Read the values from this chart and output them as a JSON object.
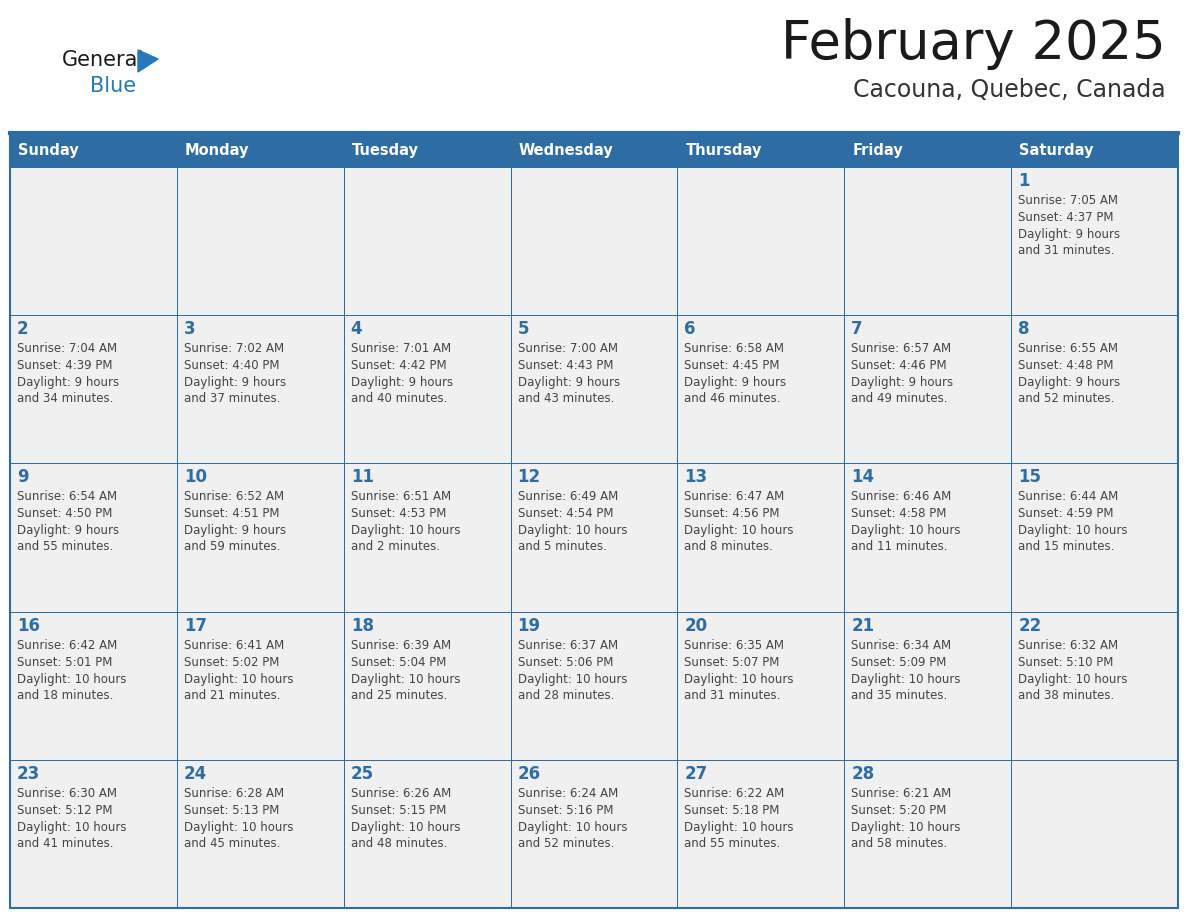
{
  "title": "February 2025",
  "subtitle": "Cacouna, Quebec, Canada",
  "days_of_week": [
    "Sunday",
    "Monday",
    "Tuesday",
    "Wednesday",
    "Thursday",
    "Friday",
    "Saturday"
  ],
  "header_bg": "#2E6DA4",
  "header_text": "#FFFFFF",
  "cell_bg": "#F0F0F0",
  "border_color": "#2E6DA4",
  "day_number_color": "#2E6DA4",
  "text_color": "#444444",
  "title_color": "#1a1a1a",
  "subtitle_color": "#333333",
  "logo_general_color": "#1a1a1a",
  "logo_blue_color": "#2479BD",
  "weeks": [
    [
      null,
      null,
      null,
      null,
      null,
      null,
      1
    ],
    [
      2,
      3,
      4,
      5,
      6,
      7,
      8
    ],
    [
      9,
      10,
      11,
      12,
      13,
      14,
      15
    ],
    [
      16,
      17,
      18,
      19,
      20,
      21,
      22
    ],
    [
      23,
      24,
      25,
      26,
      27,
      28,
      null
    ]
  ],
  "cell_data": {
    "1": {
      "sunrise": "7:05 AM",
      "sunset": "4:37 PM",
      "daylight_line1": "Daylight: 9 hours",
      "daylight_line2": "and 31 minutes."
    },
    "2": {
      "sunrise": "7:04 AM",
      "sunset": "4:39 PM",
      "daylight_line1": "Daylight: 9 hours",
      "daylight_line2": "and 34 minutes."
    },
    "3": {
      "sunrise": "7:02 AM",
      "sunset": "4:40 PM",
      "daylight_line1": "Daylight: 9 hours",
      "daylight_line2": "and 37 minutes."
    },
    "4": {
      "sunrise": "7:01 AM",
      "sunset": "4:42 PM",
      "daylight_line1": "Daylight: 9 hours",
      "daylight_line2": "and 40 minutes."
    },
    "5": {
      "sunrise": "7:00 AM",
      "sunset": "4:43 PM",
      "daylight_line1": "Daylight: 9 hours",
      "daylight_line2": "and 43 minutes."
    },
    "6": {
      "sunrise": "6:58 AM",
      "sunset": "4:45 PM",
      "daylight_line1": "Daylight: 9 hours",
      "daylight_line2": "and 46 minutes."
    },
    "7": {
      "sunrise": "6:57 AM",
      "sunset": "4:46 PM",
      "daylight_line1": "Daylight: 9 hours",
      "daylight_line2": "and 49 minutes."
    },
    "8": {
      "sunrise": "6:55 AM",
      "sunset": "4:48 PM",
      "daylight_line1": "Daylight: 9 hours",
      "daylight_line2": "and 52 minutes."
    },
    "9": {
      "sunrise": "6:54 AM",
      "sunset": "4:50 PM",
      "daylight_line1": "Daylight: 9 hours",
      "daylight_line2": "and 55 minutes."
    },
    "10": {
      "sunrise": "6:52 AM",
      "sunset": "4:51 PM",
      "daylight_line1": "Daylight: 9 hours",
      "daylight_line2": "and 59 minutes."
    },
    "11": {
      "sunrise": "6:51 AM",
      "sunset": "4:53 PM",
      "daylight_line1": "Daylight: 10 hours",
      "daylight_line2": "and 2 minutes."
    },
    "12": {
      "sunrise": "6:49 AM",
      "sunset": "4:54 PM",
      "daylight_line1": "Daylight: 10 hours",
      "daylight_line2": "and 5 minutes."
    },
    "13": {
      "sunrise": "6:47 AM",
      "sunset": "4:56 PM",
      "daylight_line1": "Daylight: 10 hours",
      "daylight_line2": "and 8 minutes."
    },
    "14": {
      "sunrise": "6:46 AM",
      "sunset": "4:58 PM",
      "daylight_line1": "Daylight: 10 hours",
      "daylight_line2": "and 11 minutes."
    },
    "15": {
      "sunrise": "6:44 AM",
      "sunset": "4:59 PM",
      "daylight_line1": "Daylight: 10 hours",
      "daylight_line2": "and 15 minutes."
    },
    "16": {
      "sunrise": "6:42 AM",
      "sunset": "5:01 PM",
      "daylight_line1": "Daylight: 10 hours",
      "daylight_line2": "and 18 minutes."
    },
    "17": {
      "sunrise": "6:41 AM",
      "sunset": "5:02 PM",
      "daylight_line1": "Daylight: 10 hours",
      "daylight_line2": "and 21 minutes."
    },
    "18": {
      "sunrise": "6:39 AM",
      "sunset": "5:04 PM",
      "daylight_line1": "Daylight: 10 hours",
      "daylight_line2": "and 25 minutes."
    },
    "19": {
      "sunrise": "6:37 AM",
      "sunset": "5:06 PM",
      "daylight_line1": "Daylight: 10 hours",
      "daylight_line2": "and 28 minutes."
    },
    "20": {
      "sunrise": "6:35 AM",
      "sunset": "5:07 PM",
      "daylight_line1": "Daylight: 10 hours",
      "daylight_line2": "and 31 minutes."
    },
    "21": {
      "sunrise": "6:34 AM",
      "sunset": "5:09 PM",
      "daylight_line1": "Daylight: 10 hours",
      "daylight_line2": "and 35 minutes."
    },
    "22": {
      "sunrise": "6:32 AM",
      "sunset": "5:10 PM",
      "daylight_line1": "Daylight: 10 hours",
      "daylight_line2": "and 38 minutes."
    },
    "23": {
      "sunrise": "6:30 AM",
      "sunset": "5:12 PM",
      "daylight_line1": "Daylight: 10 hours",
      "daylight_line2": "and 41 minutes."
    },
    "24": {
      "sunrise": "6:28 AM",
      "sunset": "5:13 PM",
      "daylight_line1": "Daylight: 10 hours",
      "daylight_line2": "and 45 minutes."
    },
    "25": {
      "sunrise": "6:26 AM",
      "sunset": "5:15 PM",
      "daylight_line1": "Daylight: 10 hours",
      "daylight_line2": "and 48 minutes."
    },
    "26": {
      "sunrise": "6:24 AM",
      "sunset": "5:16 PM",
      "daylight_line1": "Daylight: 10 hours",
      "daylight_line2": "and 52 minutes."
    },
    "27": {
      "sunrise": "6:22 AM",
      "sunset": "5:18 PM",
      "daylight_line1": "Daylight: 10 hours",
      "daylight_line2": "and 55 minutes."
    },
    "28": {
      "sunrise": "6:21 AM",
      "sunset": "5:20 PM",
      "daylight_line1": "Daylight: 10 hours",
      "daylight_line2": "and 58 minutes."
    }
  }
}
